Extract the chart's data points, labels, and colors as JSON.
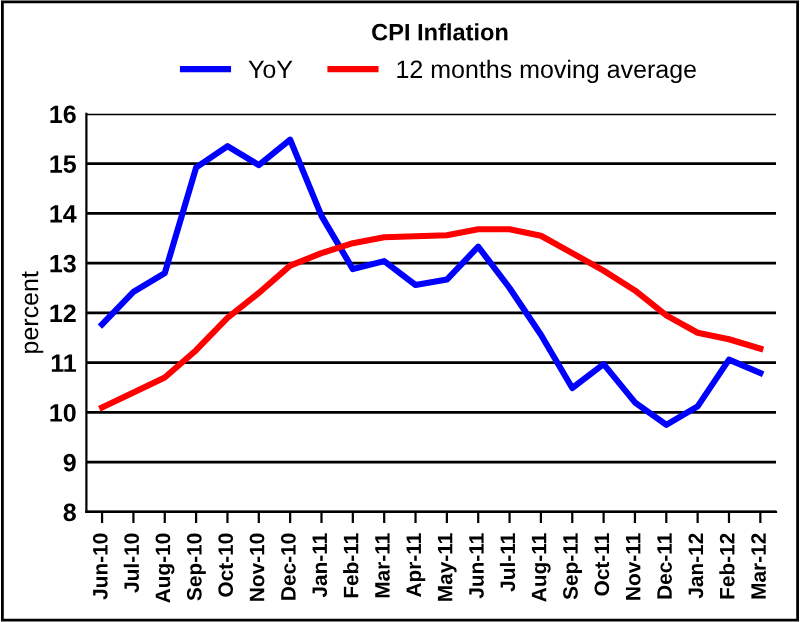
{
  "chart_data": {
    "type": "line",
    "title": "CPI Inflation",
    "ylabel": "percent",
    "categories": [
      "Jun-10",
      "Jul-10",
      "Aug-10",
      "Sep-10",
      "Oct-10",
      "Nov-10",
      "Dec-10",
      "Jan-11",
      "Feb-11",
      "Mar-11",
      "Apr-11",
      "May-11",
      "Jun-11",
      "Jul-11",
      "Aug-11",
      "Sep-11",
      "Oct-11",
      "Nov-11",
      "Dec-11",
      "Jan-12",
      "Feb-12",
      "Mar-12"
    ],
    "series": [
      {
        "name": "YoY",
        "color": "#0000ff",
        "values": [
          11.77,
          12.42,
          12.8,
          14.92,
          15.35,
          14.97,
          15.48,
          13.95,
          12.88,
          13.04,
          12.56,
          12.67,
          13.33,
          12.5,
          11.56,
          10.49,
          10.97,
          10.2,
          9.75,
          10.12,
          11.06,
          10.79
        ]
      },
      {
        "name": "12 months moving average",
        "color": "#ff0000",
        "values": [
          10.1,
          10.4,
          10.7,
          11.25,
          11.9,
          12.4,
          12.95,
          13.2,
          13.4,
          13.52,
          13.54,
          13.56,
          13.68,
          13.68,
          13.55,
          13.2,
          12.85,
          12.45,
          11.95,
          11.6,
          11.47,
          11.28
        ]
      }
    ],
    "ylim": [
      8,
      16
    ],
    "yticks": [
      8,
      9,
      10,
      11,
      12,
      13,
      14,
      15,
      16
    ],
    "grid": "y",
    "legend": "top",
    "marker": "none",
    "line_style": "solid"
  }
}
